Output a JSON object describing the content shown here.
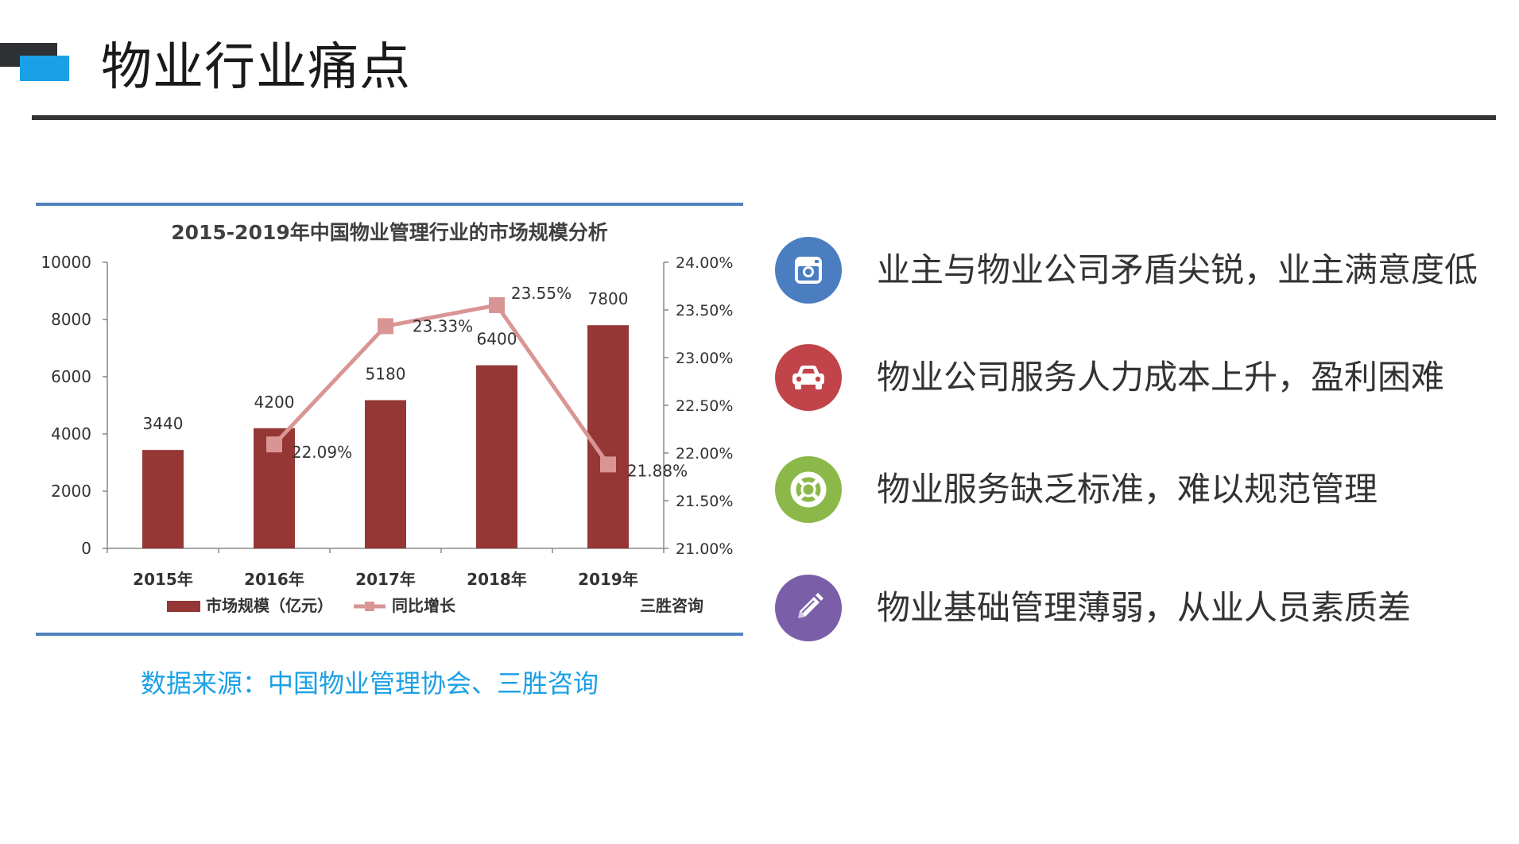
{
  "page": {
    "title": "物业行业痛点",
    "source_note": "数据来源：中国物业管理协会、三胜咨询"
  },
  "points": [
    {
      "text": "业主与物业公司矛盾尖锐，业主满意度低",
      "icon": "camera-icon",
      "color": "#4a7ec0"
    },
    {
      "text": "物业公司服务人力成本上升，盈利困难",
      "icon": "car-icon",
      "color": "#c0444a"
    },
    {
      "text": "物业服务缺乏标准，难以规范管理",
      "icon": "lifebuoy-icon",
      "color": "#8cb84a"
    },
    {
      "text": "物业基础管理薄弱，从业人员素质差",
      "icon": "pencil-icon",
      "color": "#7a5fa8"
    }
  ],
  "chart_data": {
    "type": "bar",
    "title": "2015-2019年中国物业管理行业的市场规模分析",
    "categories": [
      "2015年",
      "2016年",
      "2017年",
      "2018年",
      "2019年"
    ],
    "series": [
      {
        "name": "市场规模（亿元）",
        "type": "bar",
        "axis": "left",
        "color": "#953735",
        "values": [
          3440,
          4200,
          5180,
          6400,
          7800
        ],
        "labels": [
          "3440",
          "4200",
          "5180",
          "6400",
          "7800"
        ]
      },
      {
        "name": "同比增长",
        "type": "line",
        "axis": "right",
        "color": "#d99594",
        "values": [
          null,
          22.09,
          23.33,
          23.55,
          21.88
        ],
        "labels": [
          "",
          "22.09%",
          "23.33%",
          "23.55%",
          "21.88%"
        ]
      }
    ],
    "ylim": [
      0,
      10000
    ],
    "y_ticks": [
      "0",
      "2000",
      "4000",
      "6000",
      "8000",
      "10000"
    ],
    "y2lim": [
      21.0,
      24.0
    ],
    "y2_ticks": [
      "21.00%",
      "21.50%",
      "22.00%",
      "22.50%",
      "23.00%",
      "23.50%",
      "24.00%"
    ],
    "source_label": "三胜咨询",
    "legend_position": "bottom",
    "grid": false
  }
}
